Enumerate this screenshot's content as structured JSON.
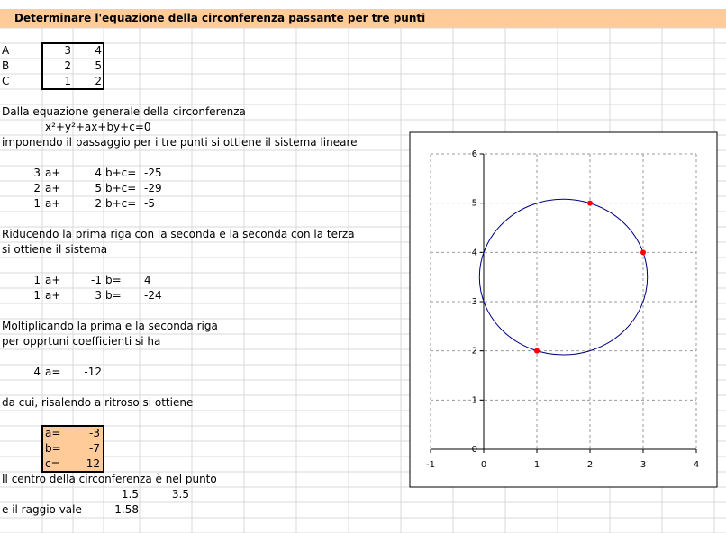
{
  "title": "Determinare l'equazione della circonferenza passante per tre punti",
  "points": [
    {
      "name": "A",
      "x": 3,
      "y": 4
    },
    {
      "name": "B",
      "x": 2,
      "y": 5
    },
    {
      "name": "C",
      "x": 1,
      "y": 2
    }
  ],
  "intro": "Dalla equazione generale della circonferenza",
  "equation": "x²+y²+ax+by+c=0",
  "system_intro": "imponendo il passaggio per i tre punti si ottiene il sistema lineare",
  "system": [
    {
      "a": 3,
      "a_label": "a+",
      "b": 4,
      "b_label": "b+c=",
      "rhs": -25
    },
    {
      "a": 2,
      "a_label": "a+",
      "b": 5,
      "b_label": "b+c=",
      "rhs": -29
    },
    {
      "a": 1,
      "a_label": "a+",
      "b": 2,
      "b_label": "b+c=",
      "rhs": -5
    }
  ],
  "reduce_text": [
    "Riducendo la prima riga con la seconda e la seconda con la terza",
    "si ottiene il sistema"
  ],
  "reduced": [
    {
      "a": 1,
      "a_label": "a+",
      "b": -1,
      "b_label": "b=",
      "rhs": 4
    },
    {
      "a": 1,
      "a_label": "a+",
      "b": 3,
      "b_label": "b=",
      "rhs": -24
    }
  ],
  "multiply_text": [
    "Moltiplicando la prima e la seconda riga",
    "per opprtuni coefficienti si ha"
  ],
  "single": {
    "a": 4,
    "a_label": "a=",
    "rhs": -12
  },
  "back_text": "da cui, risalendo a ritroso si ottiene",
  "solution": [
    {
      "name": "a=",
      "value": -3
    },
    {
      "name": "b=",
      "value": -7
    },
    {
      "name": "c=",
      "value": 12
    }
  ],
  "center_text": "Il centro della circonferenza è nel punto",
  "center": [
    1.5,
    3.5
  ],
  "radius_text": "e il raggio vale",
  "radius": 1.58,
  "chart_data": {
    "type": "scatter",
    "x": [
      3,
      2,
      1
    ],
    "values": [
      4,
      5,
      2
    ],
    "color": "#ff0000",
    "circle_color": "#000080",
    "xlim": [
      -1,
      4
    ],
    "ylim": [
      0,
      6
    ],
    "xticks": [
      -1,
      0,
      1,
      2,
      3,
      4
    ],
    "yticks": [
      0,
      1,
      2,
      3,
      4,
      5,
      6
    ],
    "grid": true
  }
}
